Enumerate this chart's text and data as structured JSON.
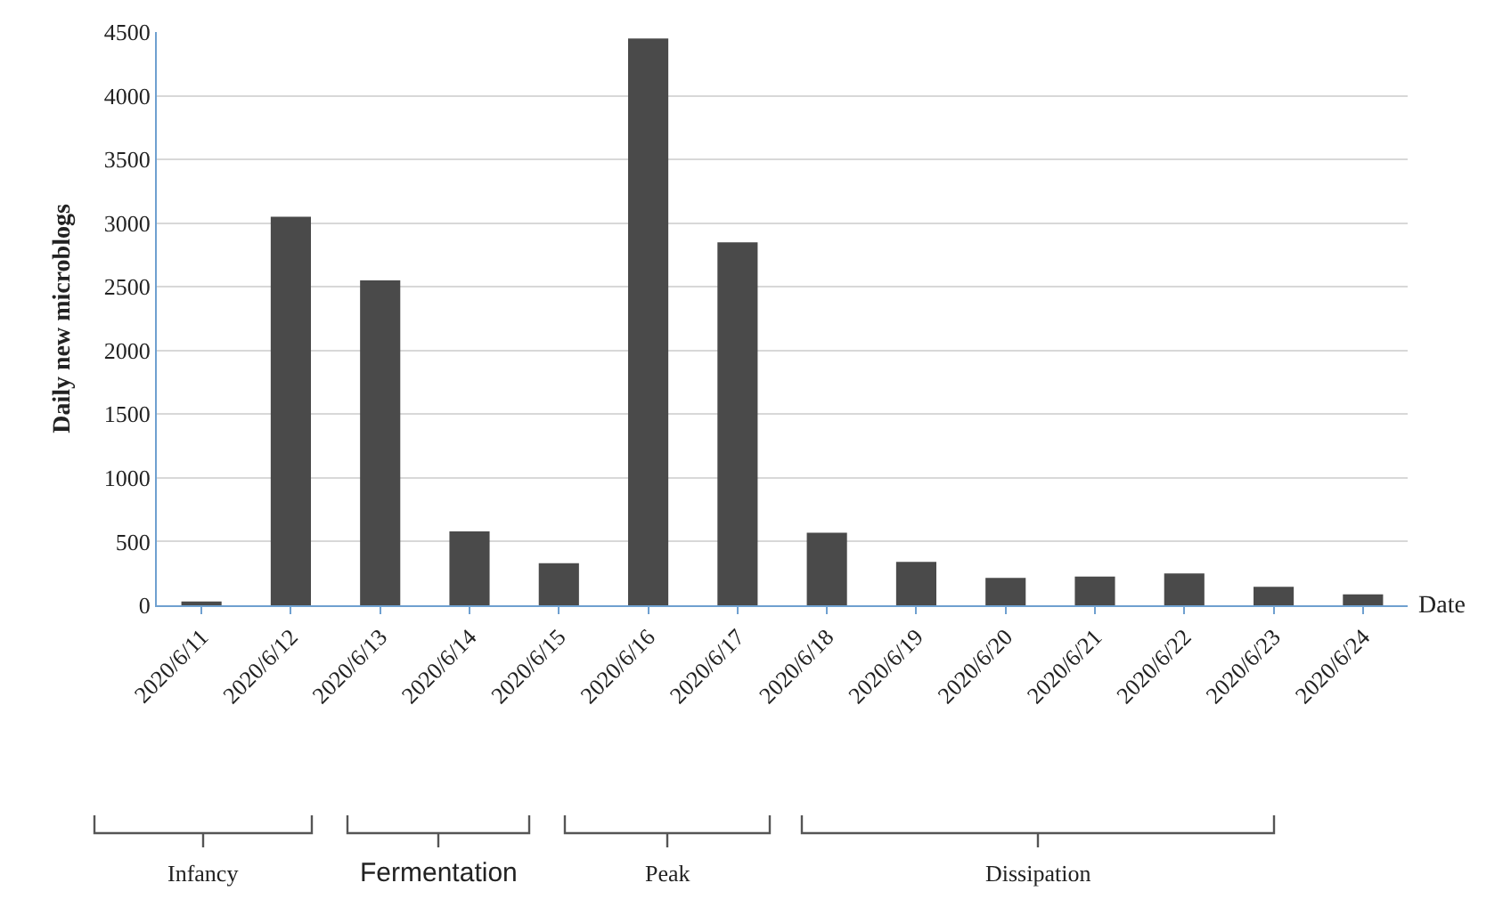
{
  "chart_data": {
    "type": "bar",
    "categories": [
      "2020/6/11",
      "2020/6/12",
      "2020/6/13",
      "2020/6/14",
      "2020/6/15",
      "2020/6/16",
      "2020/6/17",
      "2020/6/18",
      "2020/6/19",
      "2020/6/20",
      "2020/6/21",
      "2020/6/22",
      "2020/6/23",
      "2020/6/24"
    ],
    "values": [
      30,
      3050,
      2550,
      580,
      330,
      4450,
      2850,
      570,
      340,
      215,
      225,
      250,
      145,
      85
    ],
    "color": "#4a4a4a",
    "ylabel": "Daily new microblogs",
    "xlabel": "Date",
    "ylim": [
      0,
      4500
    ],
    "yticks": [
      0,
      500,
      1000,
      1500,
      2000,
      2500,
      3000,
      3500,
      4000,
      4500
    ],
    "grid": "y",
    "annotations": [
      "Infancy",
      "Fermentation",
      "Peak",
      "Dissipation"
    ]
  }
}
